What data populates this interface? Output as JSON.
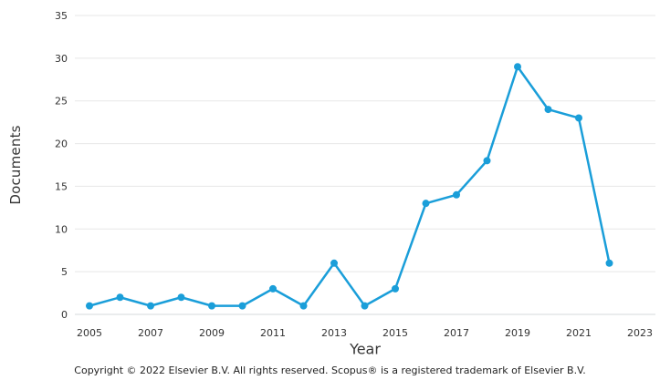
{
  "chart_data": {
    "type": "line",
    "x": [
      2005,
      2006,
      2007,
      2008,
      2009,
      2010,
      2011,
      2012,
      2013,
      2014,
      2015,
      2016,
      2017,
      2018,
      2019,
      2020,
      2021,
      2022
    ],
    "values": [
      1,
      2,
      1,
      2,
      1,
      1,
      3,
      1,
      6,
      1,
      3,
      13,
      14,
      18,
      29,
      24,
      23,
      6
    ],
    "series_name": "Documents",
    "title": "",
    "xlabel": "Year",
    "ylabel": "Documents",
    "ylim": [
      0,
      35
    ],
    "x_ticks": [
      2005,
      2007,
      2009,
      2011,
      2013,
      2015,
      2017,
      2019,
      2021,
      2023
    ],
    "y_ticks": [
      0,
      5,
      10,
      15,
      20,
      25,
      30,
      35
    ],
    "grid": "horizontal",
    "legend": "none",
    "line_color": "#1a9ed9",
    "marker": "circle"
  },
  "footer": {
    "copyright": "Copyright © 2022 Elsevier B.V. All rights reserved. Scopus® is a registered trademark of Elsevier B.V."
  }
}
